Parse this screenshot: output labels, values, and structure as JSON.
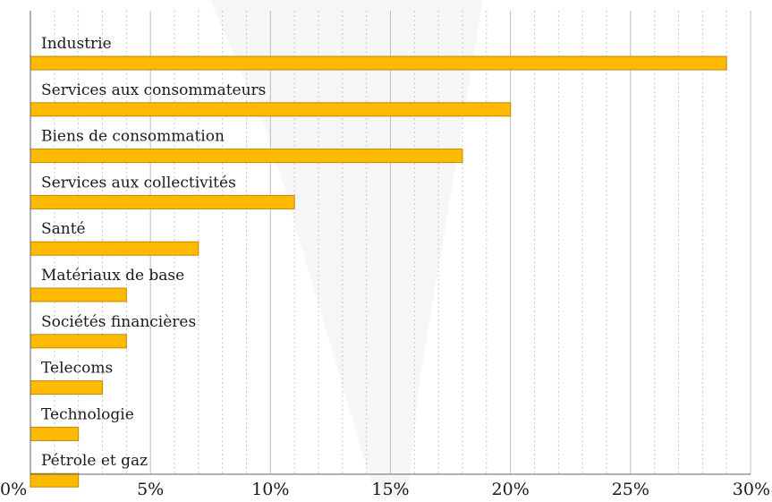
{
  "chart_data": {
    "type": "bar",
    "orientation": "horizontal",
    "categories": [
      "Industrie",
      "Services aux consommateurs",
      "Biens de consommation",
      "Services aux collectivités",
      "Santé",
      "Matériaux de base",
      "Sociétés financières",
      "Telecoms",
      "Technologie",
      "Pétrole et gaz"
    ],
    "values": [
      29,
      20,
      18,
      11,
      7,
      4,
      4,
      3,
      2,
      2
    ],
    "xlim": [
      0,
      30
    ],
    "x_ticks": [
      0,
      5,
      10,
      15,
      20,
      25,
      30
    ],
    "x_tick_labels": [
      "0%",
      "5%",
      "10%",
      "15%",
      "20%",
      "25%",
      "30%"
    ],
    "minor_tick_step": 1,
    "grid": true,
    "colors": {
      "bar_fill": "#FDBA00",
      "bar_stroke": "#C08A00",
      "major_grid": "#bdbdbd",
      "minor_grid": "#c8c8c8",
      "watermark": "#f6f6f6"
    },
    "title": "",
    "xlabel": "",
    "ylabel": ""
  }
}
